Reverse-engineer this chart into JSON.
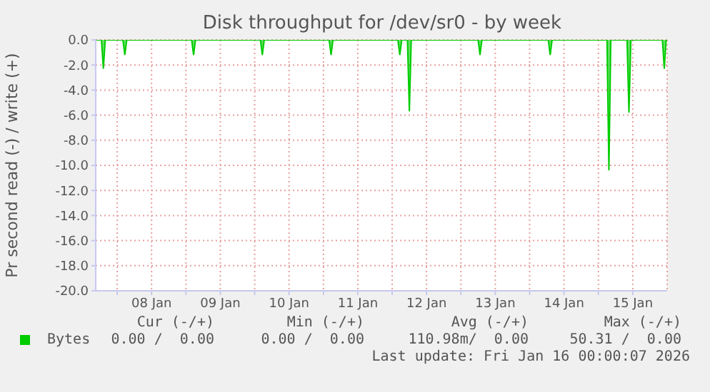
{
  "chart_data": {
    "type": "area",
    "title": "Disk throughput for /dev/sr0 - by week",
    "ylabel": "Pr second read (-) / write (+)",
    "x": [
      "2026-01-07T16:30",
      "2026-01-07T18:30",
      "2026-01-07T19:10",
      "2026-01-07T19:50",
      "2026-01-08T02:00",
      "2026-01-08T02:40",
      "2026-01-08T03:20",
      "2026-01-09T02:00",
      "2026-01-09T02:40",
      "2026-01-09T03:20",
      "2026-01-10T02:00",
      "2026-01-10T02:40",
      "2026-01-10T03:20",
      "2026-01-11T02:00",
      "2026-01-11T02:40",
      "2026-01-11T03:20",
      "2026-01-12T02:00",
      "2026-01-12T02:40",
      "2026-01-12T03:20",
      "2026-01-12T05:20",
      "2026-01-12T06:00",
      "2026-01-12T06:40",
      "2026-01-13T06:00",
      "2026-01-13T06:40",
      "2026-01-13T07:20",
      "2026-01-14T06:30",
      "2026-01-14T07:10",
      "2026-01-14T07:50",
      "2026-01-15T03:00",
      "2026-01-15T03:40",
      "2026-01-15T04:20",
      "2026-01-15T10:00",
      "2026-01-15T10:40",
      "2026-01-15T11:20",
      "2026-01-15T22:20",
      "2026-01-15T23:00",
      "2026-01-15T23:40",
      "2026-01-16T00:00"
    ],
    "series": [
      {
        "name": "Bytes",
        "color": "#00cc00",
        "values": [
          0,
          0,
          -2.3,
          0,
          0,
          -1.2,
          0,
          0,
          -1.2,
          0,
          0,
          -1.2,
          0,
          0,
          -1.2,
          0,
          0,
          -1.2,
          0,
          0,
          -5.7,
          0,
          0,
          -1.2,
          0,
          0,
          -1.2,
          0,
          0,
          -10.4,
          0,
          0,
          -5.8,
          0,
          0,
          -2.3,
          0,
          0
        ]
      }
    ],
    "xlim": [
      "2026-01-07T16:30",
      "2026-01-16T00:00"
    ],
    "xticks": [
      {
        "value": "2026-01-08T00:00",
        "label": null
      },
      {
        "value": "2026-01-08T12:00",
        "label": "08 Jan"
      },
      {
        "value": "2026-01-09T00:00",
        "label": null
      },
      {
        "value": "2026-01-09T12:00",
        "label": "09 Jan"
      },
      {
        "value": "2026-01-10T00:00",
        "label": null
      },
      {
        "value": "2026-01-10T12:00",
        "label": "10 Jan"
      },
      {
        "value": "2026-01-11T00:00",
        "label": null
      },
      {
        "value": "2026-01-11T12:00",
        "label": "11 Jan"
      },
      {
        "value": "2026-01-12T00:00",
        "label": null
      },
      {
        "value": "2026-01-12T12:00",
        "label": "12 Jan"
      },
      {
        "value": "2026-01-13T00:00",
        "label": null
      },
      {
        "value": "2026-01-13T12:00",
        "label": "13 Jan"
      },
      {
        "value": "2026-01-14T00:00",
        "label": null
      },
      {
        "value": "2026-01-14T12:00",
        "label": "14 Jan"
      },
      {
        "value": "2026-01-15T00:00",
        "label": null
      },
      {
        "value": "2026-01-15T12:00",
        "label": "15 Jan"
      }
    ],
    "ylim": [
      -20,
      0
    ],
    "yticks": [
      {
        "value": 0,
        "label": "0.0"
      },
      {
        "value": -2,
        "label": "-2.0"
      },
      {
        "value": -4,
        "label": "-4.0"
      },
      {
        "value": -6,
        "label": "-6.0"
      },
      {
        "value": -8,
        "label": "-8.0"
      },
      {
        "value": -10,
        "label": "-10.0"
      },
      {
        "value": -12,
        "label": "-12.0"
      },
      {
        "value": -14,
        "label": "-14.0"
      },
      {
        "value": -16,
        "label": "-16.0"
      },
      {
        "value": -18,
        "label": "-18.0"
      },
      {
        "value": -20,
        "label": "-20.0"
      }
    ],
    "grid": true,
    "legend": "bottom",
    "annotations": [
      "Cur (-/+)",
      "Min (-/+)",
      "Avg (-/+)",
      "Max (-/+)",
      "0.00 /  0.00",
      "0.00 /  0.00",
      "110.98m/  0.00",
      "50.31 /  0.00",
      "Last update: Fri Jan 16 00:00:07 2026"
    ]
  }
}
